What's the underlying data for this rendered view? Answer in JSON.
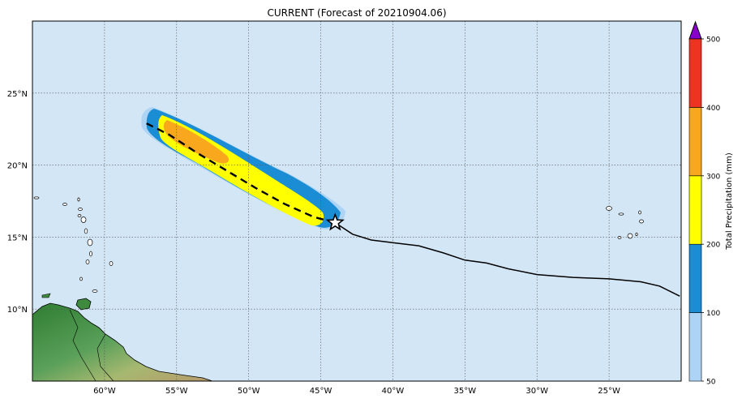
{
  "title": "CURRENT (Forecast of 20210904.06)",
  "map": {
    "lon_range": [
      -65,
      -20
    ],
    "lat_range": [
      5,
      30
    ],
    "lon_ticks": [
      {
        "value": -60,
        "label": "60°W"
      },
      {
        "value": -55,
        "label": "55°W"
      },
      {
        "value": -50,
        "label": "50°W"
      },
      {
        "value": -45,
        "label": "45°W"
      },
      {
        "value": -40,
        "label": "40°W"
      },
      {
        "value": -35,
        "label": "35°W"
      },
      {
        "value": -30,
        "label": "30°W"
      },
      {
        "value": -25,
        "label": "25°W"
      }
    ],
    "lat_ticks": [
      {
        "value": 10,
        "label": "10°N"
      },
      {
        "value": 15,
        "label": "15°N"
      },
      {
        "value": 20,
        "label": "20°N"
      },
      {
        "value": 25,
        "label": "25°N"
      }
    ],
    "ocean_color": "#d2e6f5",
    "grid": true,
    "past_track": [
      [
        -20.1,
        10.9
      ],
      [
        -21.5,
        11.6
      ],
      [
        -22.8,
        11.9
      ],
      [
        -25,
        12.1
      ],
      [
        -27.5,
        12.2
      ],
      [
        -30,
        12.4
      ],
      [
        -32,
        12.8
      ],
      [
        -33.5,
        13.2
      ],
      [
        -35,
        13.4
      ],
      [
        -36.5,
        13.9
      ],
      [
        -38.2,
        14.4
      ],
      [
        -39.5,
        14.55
      ],
      [
        -41.5,
        14.8
      ],
      [
        -42.8,
        15.2
      ],
      [
        -44,
        16
      ]
    ],
    "forecast_track": [
      [
        -44,
        16
      ],
      [
        -45.5,
        16.4
      ],
      [
        -47.5,
        17.3
      ],
      [
        -49.5,
        18.4
      ],
      [
        -51.5,
        19.6
      ],
      [
        -53.5,
        20.8
      ],
      [
        -55.5,
        22.1
      ],
      [
        -57.3,
        23
      ]
    ],
    "storm_position": {
      "lon": -44,
      "lat": 16,
      "icon": "star-icon"
    }
  },
  "colorbar": {
    "label": "Total Precipitation (mm)",
    "levels": [
      "50",
      "100",
      "200",
      "300",
      "400",
      "500"
    ],
    "colors": [
      "#aed4f5",
      "#1b8dd4",
      "#ffff00",
      "#f9a71d",
      "#ee3322"
    ],
    "extend_color": "#8800cc"
  }
}
